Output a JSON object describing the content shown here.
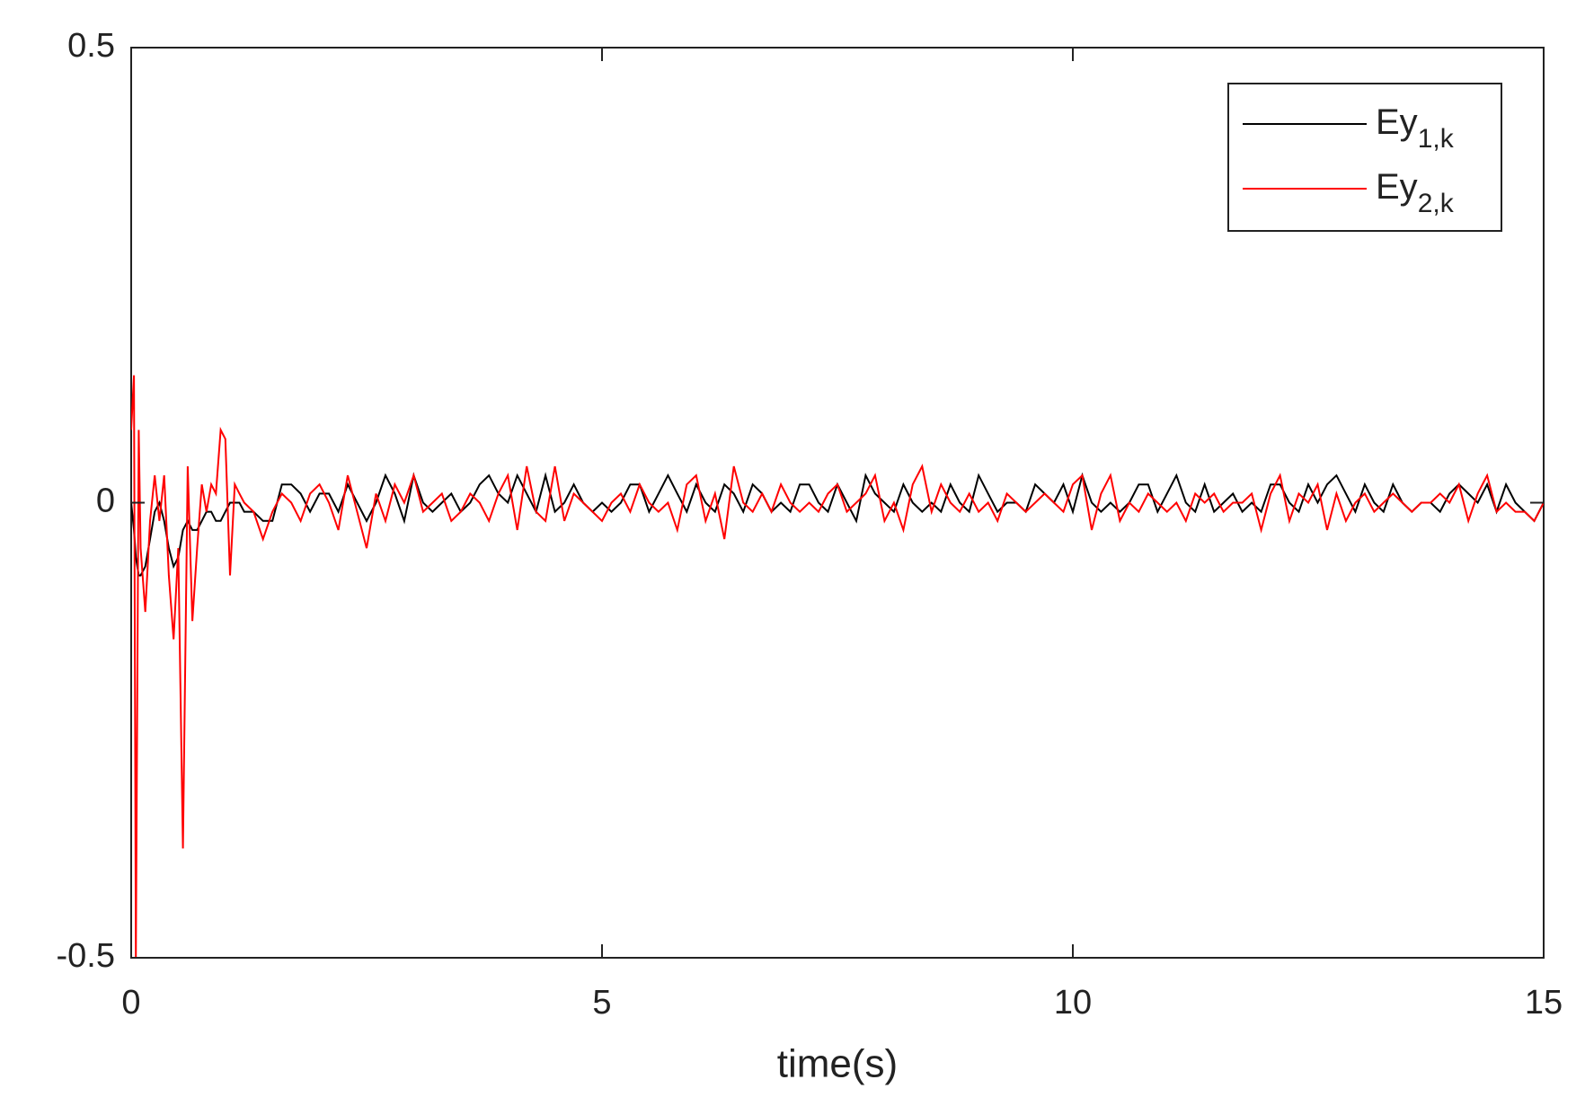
{
  "chart_data": {
    "type": "line",
    "xlabel": "time(s)",
    "xlim": [
      0,
      15
    ],
    "ylim": [
      -0.5,
      0.5
    ],
    "xticks": [
      0,
      5,
      10,
      15
    ],
    "yticks": [
      -0.5,
      0,
      0.5
    ],
    "legend": "upper right",
    "x": [
      0,
      0.03,
      0.05,
      0.08,
      0.1,
      0.15,
      0.2,
      0.25,
      0.3,
      0.35,
      0.4,
      0.45,
      0.5,
      0.55,
      0.6,
      0.65,
      0.7,
      0.75,
      0.8,
      0.85,
      0.9,
      0.95,
      1.0,
      1.05,
      1.1,
      1.15,
      1.2,
      1.3,
      1.4,
      1.5,
      1.6,
      1.7,
      1.8,
      1.9,
      2.0,
      2.1,
      2.2,
      2.3,
      2.4,
      2.5,
      2.6,
      2.7,
      2.8,
      2.9,
      3.0,
      3.1,
      3.2,
      3.3,
      3.4,
      3.5,
      3.6,
      3.7,
      3.8,
      3.9,
      4.0,
      4.1,
      4.2,
      4.3,
      4.4,
      4.5,
      4.6,
      4.7,
      4.8,
      4.9,
      5.0,
      5.1,
      5.2,
      5.3,
      5.4,
      5.5,
      5.6,
      5.7,
      5.8,
      5.9,
      6.0,
      6.1,
      6.2,
      6.3,
      6.4,
      6.5,
      6.6,
      6.7,
      6.8,
      6.9,
      7.0,
      7.1,
      7.2,
      7.3,
      7.4,
      7.5,
      7.6,
      7.7,
      7.8,
      7.9,
      8.0,
      8.1,
      8.2,
      8.3,
      8.4,
      8.5,
      8.6,
      8.7,
      8.8,
      8.9,
      9.0,
      9.1,
      9.2,
      9.3,
      9.4,
      9.5,
      9.6,
      9.7,
      9.8,
      9.9,
      10.0,
      10.1,
      10.2,
      10.3,
      10.4,
      10.5,
      10.6,
      10.7,
      10.8,
      10.9,
      11.0,
      11.1,
      11.2,
      11.3,
      11.4,
      11.5,
      11.6,
      11.7,
      11.8,
      11.9,
      12.0,
      12.1,
      12.2,
      12.3,
      12.4,
      12.5,
      12.6,
      12.7,
      12.8,
      12.9,
      13.0,
      13.1,
      13.2,
      13.3,
      13.4,
      13.5,
      13.6,
      13.7,
      13.8,
      13.9,
      14.0,
      14.1,
      14.2,
      14.3,
      14.4,
      14.5,
      14.6,
      14.7,
      14.8,
      14.9,
      15.0
    ],
    "series": [
      {
        "name": "Ey",
        "subscript": "1,k",
        "color": "#000000",
        "values": [
          0,
          -0.03,
          -0.06,
          -0.08,
          -0.08,
          -0.07,
          -0.04,
          -0.01,
          0,
          -0.02,
          -0.05,
          -0.07,
          -0.06,
          -0.03,
          -0.02,
          -0.03,
          -0.03,
          -0.02,
          -0.01,
          -0.01,
          -0.02,
          -0.02,
          -0.01,
          0,
          0,
          0,
          -0.01,
          -0.01,
          -0.02,
          -0.02,
          0.02,
          0.02,
          0.01,
          -0.01,
          0.01,
          0.01,
          -0.01,
          0.02,
          0,
          -0.02,
          0,
          0.03,
          0.01,
          -0.02,
          0.03,
          0,
          -0.01,
          0,
          0.01,
          -0.01,
          0,
          0.02,
          0.03,
          0.01,
          0,
          0.03,
          0.01,
          -0.01,
          0.03,
          -0.01,
          0,
          0.02,
          0,
          -0.01,
          0,
          -0.01,
          0,
          0.02,
          0.02,
          -0.01,
          0.01,
          0.03,
          0.01,
          -0.01,
          0.02,
          0,
          -0.01,
          0.02,
          0.01,
          -0.01,
          0.02,
          0.01,
          -0.01,
          0,
          -0.01,
          0.02,
          0.02,
          0,
          -0.01,
          0.02,
          0,
          -0.02,
          0.03,
          0.01,
          0,
          -0.01,
          0.02,
          0,
          -0.01,
          0,
          -0.01,
          0.02,
          0,
          -0.01,
          0.03,
          0.01,
          -0.01,
          0,
          0,
          -0.01,
          0.02,
          0.01,
          0,
          0.02,
          -0.01,
          0.03,
          0,
          -0.01,
          0,
          -0.01,
          0,
          0.02,
          0.02,
          -0.01,
          0.01,
          0.03,
          0,
          -0.01,
          0.02,
          -0.01,
          0,
          0.01,
          -0.01,
          0,
          -0.01,
          0.02,
          0.02,
          0,
          -0.01,
          0.02,
          0,
          0.02,
          0.03,
          0.01,
          -0.01,
          0.02,
          0,
          -0.01,
          0.02,
          0,
          -0.01,
          0,
          0,
          -0.01,
          0.01,
          0.02,
          0.01,
          0,
          0.02,
          -0.01,
          0.02,
          0,
          -0.01,
          -0.02,
          0
        ]
      },
      {
        "name": "Ey",
        "subscript": "2,k",
        "color": "#ff0000",
        "values": [
          0.08,
          0.14,
          -0.5,
          0.08,
          -0.05,
          -0.12,
          -0.02,
          0.03,
          -0.02,
          0.03,
          -0.08,
          -0.15,
          -0.05,
          -0.38,
          0.04,
          -0.13,
          -0.05,
          0.02,
          -0.01,
          0.02,
          0.01,
          0.08,
          0.07,
          -0.08,
          0.02,
          0.01,
          0,
          -0.01,
          -0.04,
          -0.01,
          0.01,
          0,
          -0.02,
          0.01,
          0.02,
          0,
          -0.03,
          0.03,
          -0.01,
          -0.05,
          0.01,
          -0.02,
          0.02,
          0,
          0.03,
          -0.01,
          0,
          0.01,
          -0.02,
          -0.01,
          0.01,
          0,
          -0.02,
          0.01,
          0.03,
          -0.03,
          0.04,
          -0.01,
          -0.02,
          0.04,
          -0.02,
          0.01,
          0,
          -0.01,
          -0.02,
          0,
          0.01,
          -0.01,
          0.02,
          0,
          -0.01,
          0,
          -0.03,
          0.02,
          0.03,
          -0.02,
          0.01,
          -0.04,
          0.04,
          0,
          -0.01,
          0.01,
          -0.01,
          0.02,
          0,
          -0.01,
          0,
          -0.01,
          0.01,
          0.02,
          -0.01,
          0,
          0.01,
          0.03,
          -0.02,
          0,
          -0.03,
          0.02,
          0.04,
          -0.01,
          0.02,
          0,
          -0.01,
          0.01,
          -0.01,
          0,
          -0.02,
          0.01,
          0,
          -0.01,
          0,
          0.01,
          0,
          -0.01,
          0.02,
          0.03,
          -0.03,
          0.01,
          0.03,
          -0.02,
          0,
          -0.01,
          0.01,
          0,
          -0.01,
          0,
          -0.02,
          0.01,
          0,
          0.01,
          -0.01,
          0,
          0,
          0.01,
          -0.03,
          0.01,
          0.03,
          -0.02,
          0.01,
          0,
          0.02,
          -0.03,
          0.01,
          -0.02,
          0,
          0.01,
          -0.01,
          0,
          0.01,
          0,
          -0.01,
          0,
          0,
          0.01,
          0,
          0.02,
          -0.02,
          0.01,
          0.03,
          -0.01,
          0,
          -0.01,
          -0.01,
          -0.02,
          0
        ]
      }
    ]
  }
}
